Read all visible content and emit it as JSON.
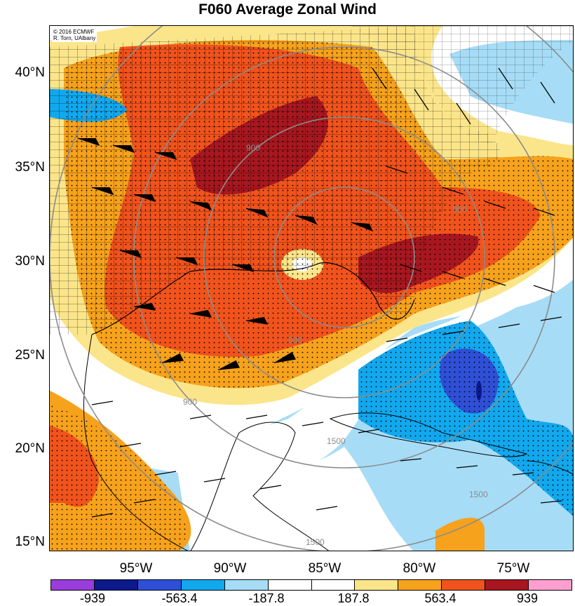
{
  "title": "F060 Average Zonal Wind",
  "credit": [
    "© 2016 ECMWF",
    "R. Torn, UAlbany"
  ],
  "lat_labels": [
    "40°N",
    "35°N",
    "30°N",
    "25°N",
    "20°N",
    "15°N"
  ],
  "lon_labels": [
    "95°W",
    "90°W",
    "85°W",
    "80°W",
    "75°W"
  ],
  "contour_labels": [
    "900",
    "900",
    "900",
    "900",
    "1500",
    "1500",
    "1500"
  ],
  "colorbar": {
    "colors": [
      "#9a3ddb",
      "#0c1a8c",
      "#2f4fd6",
      "#11a8ee",
      "#a6dcf6",
      "#ffffff",
      "#ffffff",
      "#fbe58a",
      "#f7a21c",
      "#f1531c",
      "#a8171f",
      "#ff9fd0"
    ],
    "ticks": [
      "-939",
      "-563.4",
      "-187.8",
      "187.8",
      "563.4",
      "939"
    ]
  }
}
